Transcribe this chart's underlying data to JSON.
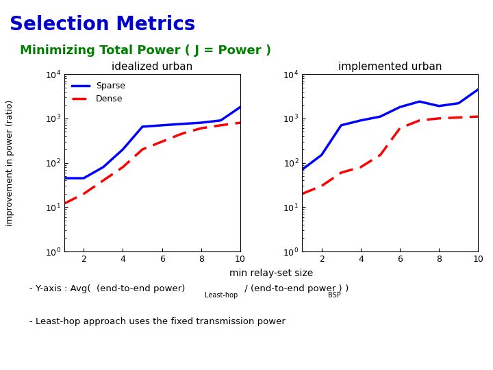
{
  "title": "Selection Metrics",
  "subtitle": "Minimizing Total Power ( J = Power )",
  "title_color": "#0000CC",
  "subtitle_color": "#008000",
  "xlabel": "min relay-set size",
  "ylabel": "improvement in power (ratio)",
  "plot1_title": "idealized urban",
  "plot2_title": "implemented urban",
  "x": [
    1,
    2,
    3,
    4,
    5,
    6,
    7,
    8,
    9,
    10
  ],
  "ideal_sparse": [
    45,
    45,
    80,
    200,
    650,
    700,
    750,
    800,
    900,
    1800
  ],
  "ideal_dense": [
    12,
    20,
    40,
    80,
    200,
    300,
    450,
    600,
    700,
    800
  ],
  "impl_sparse": [
    70,
    150,
    700,
    900,
    1100,
    1800,
    2400,
    1900,
    2200,
    4500
  ],
  "impl_dense": [
    20,
    30,
    60,
    80,
    150,
    600,
    900,
    1000,
    1050,
    1100
  ],
  "sparse_color": "#0000FF",
  "dense_color": "#FF0000",
  "background_color": "#FFFFFF",
  "annotation_line1": "- Y-axis : Avg(  (end-to-end power)",
  "annotation_line1_sub": "Least-hop",
  "annotation_line1_mid": " / (end-to-end power )",
  "annotation_line1_sub2": "BSP",
  "annotation_line1_end": " )",
  "annotation_line2": "- Least-hop approach uses the fixed transmission power"
}
